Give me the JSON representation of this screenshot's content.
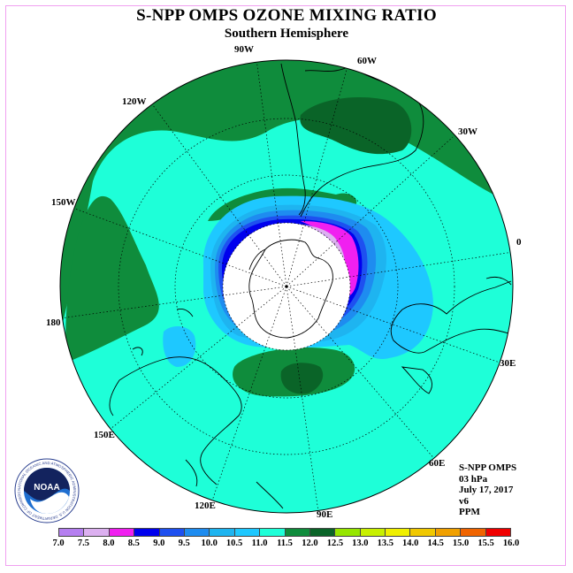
{
  "title": "S-NPP OMPS OZONE MIXING RATIO",
  "subtitle": "Southern Hemisphere",
  "longitude_labels": [
    {
      "id": "lon-90w",
      "text": "90W"
    },
    {
      "id": "lon-60w",
      "text": "60W"
    },
    {
      "id": "lon-30w",
      "text": "30W"
    },
    {
      "id": "lon-0",
      "text": "0"
    },
    {
      "id": "lon-30e",
      "text": "30E"
    },
    {
      "id": "lon-60e",
      "text": "60E"
    },
    {
      "id": "lon-90e",
      "text": "90E"
    },
    {
      "id": "lon-120e",
      "text": "120E"
    },
    {
      "id": "lon-150e",
      "text": "150E"
    },
    {
      "id": "lon-180",
      "text": "180"
    },
    {
      "id": "lon-150w",
      "text": "150W"
    },
    {
      "id": "lon-120w",
      "text": "120W"
    }
  ],
  "info": {
    "instrument": "S-NPP OMPS",
    "level": "03 hPa",
    "date": "July 17, 2017",
    "version": "v6",
    "units": "PPM"
  },
  "logo": {
    "text": "NOAA",
    "ring_text": "NATIONAL OCEANIC AND ATMOSPHERIC ADMINISTRATION U.S. DEPARTMENT OF COMMERCE"
  },
  "colorbar": {
    "labels": [
      "7.0",
      "7.5",
      "8.0",
      "8.5",
      "9.0",
      "9.5",
      "10.0",
      "10.5",
      "11.0",
      "11.5",
      "12.0",
      "12.5",
      "13.0",
      "13.5",
      "14.0",
      "14.5",
      "15.0",
      "15.5",
      "16.0"
    ],
    "colors": [
      "#b57ff0",
      "#dcb0f0",
      "#f020f0",
      "#0000ee",
      "#1e50f0",
      "#1e8cf0",
      "#1eb4f0",
      "#1ec8ff",
      "#1effd8",
      "#0f8c3c",
      "#0a6428",
      "#96e600",
      "#c8f000",
      "#f0f000",
      "#f0c800",
      "#f0a000",
      "#f06400",
      "#f00000",
      "#8c5a3c"
    ]
  },
  "colors": {
    "background_field": "#1effd8",
    "green_high": "#0f8c3c",
    "dark_green": "#0a6428",
    "light_blue": "#1ec8ff",
    "frame": "#f0a0f0"
  }
}
